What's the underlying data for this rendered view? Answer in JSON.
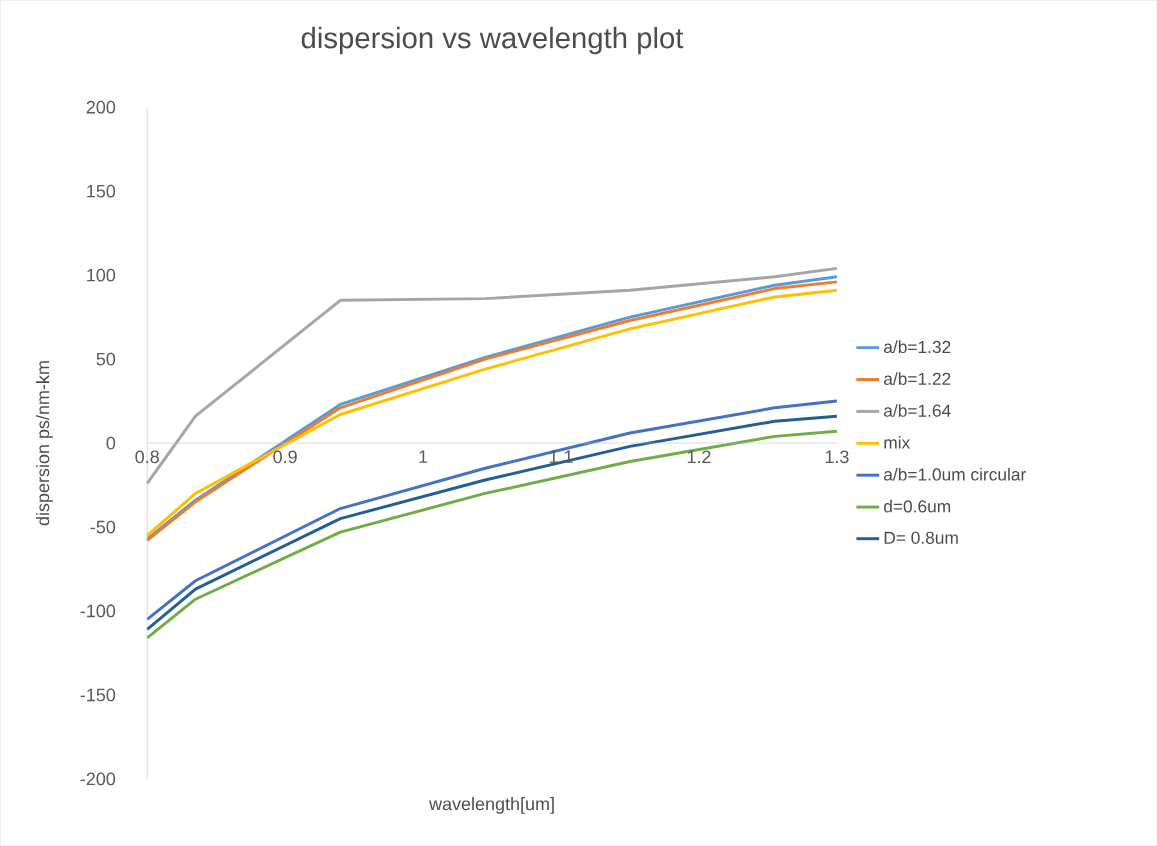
{
  "chart_data": {
    "type": "line",
    "title": "dispersion vs wavelength plot",
    "xlabel": "wavelength[um]",
    "ylabel": "dispersion ps/nm-km",
    "x": [
      0.8,
      0.835,
      0.94,
      1.045,
      1.15,
      1.255,
      1.3
    ],
    "xlim": [
      0.8,
      1.3
    ],
    "xticks": [
      0.8,
      0.9,
      1,
      1.1,
      1.2,
      1.3
    ],
    "ylim": [
      -200,
      200
    ],
    "yticks": [
      -200,
      -150,
      -100,
      -50,
      0,
      50,
      100,
      150,
      200
    ],
    "legend": "right",
    "series": [
      {
        "name": "a/b=1.32",
        "color": "#5b9bd5",
        "values": [
          -57,
          -34,
          23,
          51,
          75,
          94,
          99
        ]
      },
      {
        "name": "a/b=1.22",
        "color": "#ed7d31",
        "values": [
          -58,
          -35,
          21,
          50,
          73,
          92,
          96
        ]
      },
      {
        "name": "a/b=1.64",
        "color": "#a5a5a5",
        "values": [
          -24,
          16,
          85,
          86,
          91,
          99,
          104
        ]
      },
      {
        "name": "mix",
        "color": "#ffc000",
        "values": [
          -55,
          -30,
          17,
          44,
          68,
          87,
          91
        ]
      },
      {
        "name": "a/b=1.0um circular",
        "color": "#4472c4",
        "values": [
          -105,
          -82,
          -39,
          -15,
          6,
          21,
          25
        ]
      },
      {
        "name": "d=0.6um",
        "color": "#70ad47",
        "values": [
          -116,
          -93,
          -53,
          -30,
          -11,
          4,
          7
        ]
      },
      {
        "name": "D= 0.8um",
        "color": "#255e91",
        "values": [
          -111,
          -87,
          -45,
          -22,
          -2,
          13,
          16
        ]
      }
    ]
  }
}
